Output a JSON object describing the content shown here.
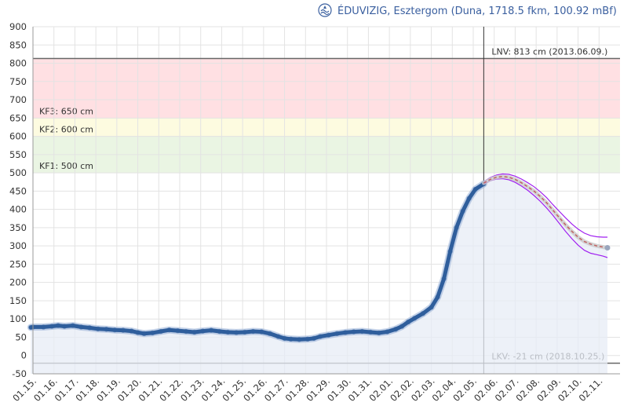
{
  "chart_data": {
    "type": "line",
    "title": "ÉDUVIZIG, Esztergom (Duna, 1718.5 fkm, 100.92 mBf)",
    "title_icon": "agency-logo-icon",
    "ylim": [
      -50,
      900
    ],
    "yticks": [
      900,
      850,
      800,
      750,
      700,
      650,
      600,
      550,
      500,
      450,
      400,
      350,
      300,
      250,
      200,
      150,
      100,
      50,
      0,
      -50
    ],
    "xlim": [
      0,
      28
    ],
    "x_tick_labels": [
      "01.15.",
      "01.16.",
      "01.17.",
      "01.18.",
      "01.19.",
      "01.20.",
      "01.21.",
      "01.22.",
      "01.23.",
      "01.24.",
      "01.25.",
      "01.26.",
      "01.27.",
      "01.28.",
      "01.29.",
      "01.30.",
      "01.31.",
      "02.01.",
      "02.02.",
      "02.03.",
      "02.04.",
      "02.05.",
      "02.06.",
      "02.07.",
      "02.08.",
      "02.09.",
      "02.10.",
      "02.11."
    ],
    "grid": true,
    "now_marker_x": 21.5,
    "bands": [
      {
        "label": "KF3: 650 cm",
        "from": 650,
        "to": 813,
        "color": "#ffe0e3"
      },
      {
        "label": "KF2: 600 cm",
        "from": 600,
        "to": 650,
        "color": "#fdfbe0"
      },
      {
        "label": "KF1: 500 cm",
        "from": 500,
        "to": 600,
        "color": "#eaf5e3"
      }
    ],
    "reference_lines": [
      {
        "label": "LNV: 813 cm (2013.06.09.)",
        "value": 813
      },
      {
        "label": "LKV: -21 cm (2018.10.25.)",
        "value": -21
      }
    ],
    "series": [
      {
        "role": "measured",
        "color": "#2f5e9c",
        "x": [
          -0.1,
          0.0,
          0.5,
          0.9,
          1.2,
          1.5,
          1.9,
          2.3,
          2.7,
          3.1,
          3.5,
          3.9,
          4.3,
          4.7,
          5.0,
          5.3,
          5.7,
          6.1,
          6.5,
          6.9,
          7.3,
          7.7,
          8.1,
          8.5,
          8.9,
          9.3,
          9.7,
          10.1,
          10.5,
          10.9,
          11.3,
          11.7,
          12.0,
          12.3,
          12.7,
          13.1,
          13.4,
          13.7,
          14.1,
          14.5,
          14.9,
          15.3,
          15.7,
          16.1,
          16.5,
          16.9,
          17.3,
          17.6,
          17.9,
          18.2,
          18.6,
          19.0,
          19.3,
          19.6,
          19.9,
          20.2,
          20.5,
          20.8,
          21.1,
          21.5
        ],
        "values": [
          77,
          78,
          78,
          80,
          82,
          80,
          82,
          78,
          76,
          73,
          72,
          70,
          69,
          67,
          63,
          60,
          62,
          66,
          70,
          68,
          66,
          64,
          67,
          69,
          66,
          64,
          63,
          64,
          66,
          65,
          60,
          52,
          47,
          45,
          44,
          45,
          47,
          52,
          56,
          60,
          63,
          65,
          66,
          64,
          62,
          65,
          72,
          80,
          92,
          102,
          115,
          132,
          160,
          210,
          285,
          350,
          395,
          430,
          455,
          470
        ]
      },
      {
        "role": "forecast",
        "color": "#c06060",
        "x": [
          21.5,
          21.8,
          22.1,
          22.4,
          22.7,
          23.0,
          23.3,
          23.6,
          23.9,
          24.2,
          24.5,
          24.8,
          25.1,
          25.4,
          25.7,
          26.0,
          26.3,
          26.6,
          26.9,
          27.2,
          27.4
        ],
        "values": [
          472,
          482,
          488,
          490,
          488,
          482,
          473,
          462,
          450,
          435,
          418,
          398,
          378,
          358,
          340,
          324,
          312,
          305,
          300,
          297,
          295
        ]
      },
      {
        "role": "forecast-upper",
        "color": "#a020f0",
        "x": [
          21.5,
          21.8,
          22.1,
          22.4,
          22.7,
          23.0,
          23.3,
          23.6,
          23.9,
          24.2,
          24.5,
          24.8,
          25.1,
          25.4,
          25.7,
          26.0,
          26.3,
          26.6,
          26.9,
          27.2,
          27.4
        ],
        "values": [
          476,
          487,
          494,
          497,
          496,
          491,
          483,
          473,
          462,
          448,
          432,
          413,
          395,
          377,
          360,
          346,
          335,
          328,
          325,
          324,
          324
        ]
      },
      {
        "role": "forecast-lower",
        "color": "#a020f0",
        "x": [
          21.5,
          21.8,
          22.1,
          22.4,
          22.7,
          23.0,
          23.3,
          23.6,
          23.9,
          24.2,
          24.5,
          24.8,
          25.1,
          25.4,
          25.7,
          26.0,
          26.3,
          26.6,
          26.9,
          27.2,
          27.4
        ],
        "values": [
          469,
          478,
          483,
          484,
          481,
          474,
          464,
          452,
          438,
          422,
          404,
          384,
          362,
          340,
          320,
          302,
          288,
          280,
          276,
          272,
          268
        ]
      }
    ]
  }
}
